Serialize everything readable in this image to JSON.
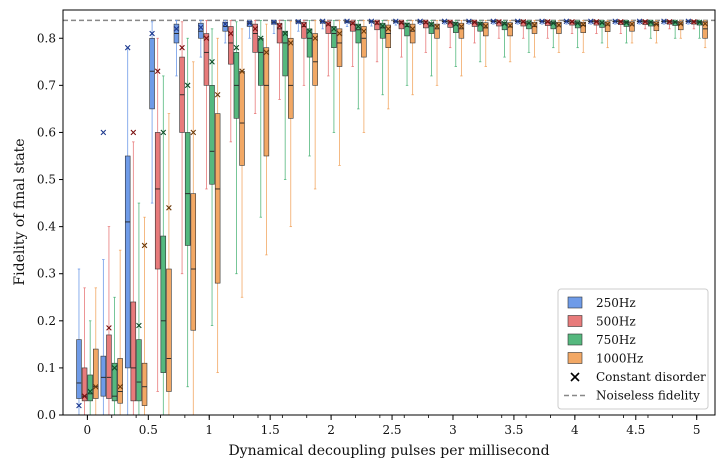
{
  "chart_data": {
    "type": "box",
    "title": "",
    "xlabel": "Dynamical decoupling pulses per millisecond",
    "ylabel": "Fidelity of final state",
    "xlim": [
      -0.2,
      5.15
    ],
    "ylim": [
      0.0,
      0.86
    ],
    "x_ticks": [
      "0",
      "0.5",
      "1",
      "1.5",
      "2",
      "2.5",
      "3",
      "3.5",
      "4",
      "4.5",
      "5"
    ],
    "y_ticks": [
      "0.0",
      "0.1",
      "0.2",
      "0.3",
      "0.4",
      "0.5",
      "0.6",
      "0.7",
      "0.8"
    ],
    "reference_line": {
      "name": "Noiseless fidelity",
      "y": 0.838
    },
    "legend": {
      "position": "bottom-right",
      "entries": [
        {
          "label": "250Hz",
          "kind": "box",
          "color": "#6f9be8"
        },
        {
          "label": "500Hz",
          "kind": "box",
          "color": "#e87b7b"
        },
        {
          "label": "750Hz",
          "kind": "box",
          "color": "#55b87e"
        },
        {
          "label": "1000Hz",
          "kind": "box",
          "color": "#f2a865"
        },
        {
          "label": "Constant disorder",
          "kind": "marker"
        },
        {
          "label": "Noiseless fidelity",
          "kind": "dashed"
        }
      ]
    },
    "series": [
      {
        "name": "250Hz",
        "color": "#6f9be8",
        "marker_color": "#1f3a8f",
        "x": [
          0,
          0.2,
          0.4,
          0.6,
          0.8,
          1,
          1.2,
          1.4,
          1.6,
          1.8,
          2,
          2.2,
          2.4,
          2.6,
          2.8,
          3,
          3.2,
          3.4,
          3.6,
          3.8,
          4,
          4.2,
          4.4,
          4.6,
          4.8,
          5
        ],
        "q1": [
          0.035,
          0.04,
          0.1,
          0.65,
          0.79,
          0.8,
          0.815,
          0.825,
          0.83,
          0.832,
          0.832,
          0.833,
          0.834,
          0.834,
          0.834,
          0.835,
          0.835,
          0.835,
          0.835,
          0.835,
          0.835,
          0.835,
          0.835,
          0.835,
          0.835,
          0.835
        ],
        "median": [
          0.068,
          0.08,
          0.41,
          0.73,
          0.81,
          0.815,
          0.825,
          0.832,
          0.834,
          0.835,
          0.836,
          0.836,
          0.836,
          0.836,
          0.836,
          0.836,
          0.836,
          0.836,
          0.836,
          0.836,
          0.836,
          0.836,
          0.836,
          0.836,
          0.836,
          0.836
        ],
        "q3": [
          0.16,
          0.125,
          0.55,
          0.8,
          0.83,
          0.832,
          0.834,
          0.836,
          0.837,
          0.837,
          0.837,
          0.837,
          0.837,
          0.837,
          0.837,
          0.837,
          0.837,
          0.837,
          0.837,
          0.837,
          0.837,
          0.837,
          0.837,
          0.837,
          0.837,
          0.837
        ],
        "whisker_low": [
          0.0,
          0.0,
          0.0,
          0.45,
          0.72,
          0.76,
          0.79,
          0.8,
          0.81,
          0.815,
          0.82,
          0.825,
          0.826,
          0.828,
          0.829,
          0.83,
          0.83,
          0.83,
          0.83,
          0.83,
          0.83,
          0.83,
          0.83,
          0.83,
          0.83,
          0.83
        ],
        "whisker_high": [
          0.31,
          0.33,
          0.78,
          0.835,
          0.838,
          0.838,
          0.838,
          0.838,
          0.838,
          0.838,
          0.838,
          0.838,
          0.838,
          0.838,
          0.838,
          0.838,
          0.838,
          0.838,
          0.838,
          0.838,
          0.838,
          0.838,
          0.838,
          0.838,
          0.838,
          0.838
        ],
        "constant_disorder": [
          0.02,
          0.6,
          0.78,
          0.81,
          0.82,
          0.823,
          0.83,
          0.832,
          0.834,
          0.835,
          0.836,
          0.836,
          0.836,
          0.836,
          0.836,
          0.836,
          0.836,
          0.836,
          0.836,
          0.836,
          0.836,
          0.836,
          0.836,
          0.836,
          0.836,
          0.836
        ]
      },
      {
        "name": "500Hz",
        "color": "#e87b7b",
        "marker_color": "#7a1010",
        "x": [
          0,
          0.2,
          0.4,
          0.6,
          0.8,
          1,
          1.2,
          1.4,
          1.6,
          1.8,
          2,
          2.2,
          2.4,
          2.6,
          2.8,
          3,
          3.2,
          3.4,
          3.6,
          3.8,
          4,
          4.2,
          4.4,
          4.6,
          4.8,
          5
        ],
        "q1": [
          0.03,
          0.035,
          0.03,
          0.31,
          0.6,
          0.7,
          0.745,
          0.77,
          0.79,
          0.8,
          0.81,
          0.815,
          0.818,
          0.82,
          0.822,
          0.823,
          0.825,
          0.826,
          0.826,
          0.827,
          0.828,
          0.828,
          0.829,
          0.829,
          0.83,
          0.83
        ],
        "median": [
          0.04,
          0.08,
          0.1,
          0.48,
          0.68,
          0.77,
          0.79,
          0.81,
          0.82,
          0.825,
          0.828,
          0.83,
          0.83,
          0.832,
          0.832,
          0.833,
          0.833,
          0.834,
          0.834,
          0.834,
          0.834,
          0.835,
          0.835,
          0.835,
          0.835,
          0.835
        ],
        "q3": [
          0.1,
          0.17,
          0.24,
          0.6,
          0.76,
          0.81,
          0.825,
          0.83,
          0.832,
          0.834,
          0.835,
          0.835,
          0.836,
          0.836,
          0.836,
          0.836,
          0.836,
          0.837,
          0.837,
          0.837,
          0.837,
          0.837,
          0.837,
          0.837,
          0.837,
          0.837
        ],
        "whisker_low": [
          0.0,
          0.0,
          0.0,
          0.05,
          0.3,
          0.48,
          0.58,
          0.64,
          0.67,
          0.7,
          0.72,
          0.74,
          0.75,
          0.76,
          0.77,
          0.78,
          0.79,
          0.8,
          0.8,
          0.8,
          0.81,
          0.81,
          0.81,
          0.82,
          0.82,
          0.82
        ],
        "whisker_high": [
          0.27,
          0.4,
          0.58,
          0.8,
          0.835,
          0.838,
          0.838,
          0.838,
          0.838,
          0.838,
          0.838,
          0.838,
          0.838,
          0.838,
          0.838,
          0.838,
          0.838,
          0.838,
          0.838,
          0.838,
          0.838,
          0.838,
          0.838,
          0.838,
          0.838,
          0.838
        ],
        "constant_disorder": [
          0.04,
          0.185,
          0.6,
          0.73,
          0.78,
          0.8,
          0.81,
          0.82,
          0.826,
          0.828,
          0.83,
          0.832,
          0.833,
          0.833,
          0.834,
          0.834,
          0.834,
          0.835,
          0.835,
          0.835,
          0.835,
          0.835,
          0.835,
          0.835,
          0.835,
          0.835
        ]
      },
      {
        "name": "750Hz",
        "color": "#55b87e",
        "marker_color": "#0f4d27",
        "x": [
          0,
          0.2,
          0.4,
          0.6,
          0.8,
          1,
          1.2,
          1.4,
          1.6,
          1.8,
          2,
          2.2,
          2.4,
          2.6,
          2.8,
          3,
          3.2,
          3.4,
          3.6,
          3.8,
          4,
          4.2,
          4.4,
          4.6,
          4.8,
          5
        ],
        "q1": [
          0.03,
          0.03,
          0.03,
          0.09,
          0.36,
          0.49,
          0.63,
          0.7,
          0.72,
          0.76,
          0.78,
          0.79,
          0.8,
          0.805,
          0.81,
          0.812,
          0.815,
          0.818,
          0.82,
          0.82,
          0.822,
          0.823,
          0.825,
          0.826,
          0.827,
          0.828
        ],
        "median": [
          0.045,
          0.04,
          0.07,
          0.2,
          0.47,
          0.56,
          0.7,
          0.77,
          0.79,
          0.8,
          0.81,
          0.818,
          0.822,
          0.825,
          0.826,
          0.828,
          0.83,
          0.83,
          0.831,
          0.832,
          0.832,
          0.832,
          0.833,
          0.833,
          0.834,
          0.834
        ],
        "q3": [
          0.085,
          0.11,
          0.16,
          0.38,
          0.6,
          0.7,
          0.77,
          0.8,
          0.815,
          0.82,
          0.825,
          0.83,
          0.832,
          0.832,
          0.833,
          0.834,
          0.834,
          0.834,
          0.835,
          0.835,
          0.835,
          0.835,
          0.836,
          0.836,
          0.836,
          0.836
        ],
        "whisker_low": [
          0.0,
          0.0,
          0.0,
          0.0,
          0.06,
          0.19,
          0.3,
          0.42,
          0.5,
          0.55,
          0.6,
          0.65,
          0.68,
          0.7,
          0.72,
          0.74,
          0.75,
          0.76,
          0.77,
          0.78,
          0.78,
          0.79,
          0.79,
          0.8,
          0.8,
          0.8
        ],
        "whisker_high": [
          0.2,
          0.25,
          0.45,
          0.72,
          0.8,
          0.82,
          0.835,
          0.838,
          0.838,
          0.838,
          0.838,
          0.838,
          0.838,
          0.838,
          0.838,
          0.838,
          0.838,
          0.838,
          0.838,
          0.838,
          0.838,
          0.838,
          0.838,
          0.838,
          0.838,
          0.838
        ],
        "constant_disorder": [
          0.05,
          0.1,
          0.19,
          0.6,
          0.7,
          0.75,
          0.78,
          0.8,
          0.81,
          0.815,
          0.82,
          0.825,
          0.826,
          0.828,
          0.83,
          0.83,
          0.83,
          0.831,
          0.832,
          0.832,
          0.832,
          0.833,
          0.833,
          0.834,
          0.834,
          0.834
        ]
      },
      {
        "name": "1000Hz",
        "color": "#f2a865",
        "marker_color": "#6b3a0a",
        "x": [
          0,
          0.2,
          0.4,
          0.6,
          0.8,
          1,
          1.2,
          1.4,
          1.6,
          1.8,
          2,
          2.2,
          2.4,
          2.6,
          2.8,
          3,
          3.2,
          3.4,
          3.6,
          3.8,
          4,
          4.2,
          4.4,
          4.6,
          4.8,
          5
        ],
        "q1": [
          0.035,
          0.025,
          0.02,
          0.05,
          0.18,
          0.28,
          0.53,
          0.55,
          0.63,
          0.7,
          0.74,
          0.76,
          0.78,
          0.79,
          0.8,
          0.8,
          0.805,
          0.805,
          0.81,
          0.81,
          0.812,
          0.814,
          0.815,
          0.816,
          0.818,
          0.8
        ],
        "median": [
          0.06,
          0.05,
          0.06,
          0.12,
          0.31,
          0.48,
          0.62,
          0.7,
          0.7,
          0.75,
          0.79,
          0.8,
          0.81,
          0.815,
          0.82,
          0.82,
          0.822,
          0.824,
          0.825,
          0.826,
          0.827,
          0.828,
          0.828,
          0.829,
          0.83,
          0.82
        ],
        "q3": [
          0.14,
          0.12,
          0.11,
          0.31,
          0.47,
          0.64,
          0.73,
          0.78,
          0.8,
          0.81,
          0.82,
          0.825,
          0.828,
          0.83,
          0.83,
          0.832,
          0.833,
          0.833,
          0.834,
          0.834,
          0.834,
          0.835,
          0.835,
          0.835,
          0.835,
          0.835
        ],
        "whisker_low": [
          0.0,
          0.0,
          0.0,
          0.0,
          0.0,
          0.09,
          0.25,
          0.34,
          0.4,
          0.48,
          0.53,
          0.6,
          0.65,
          0.68,
          0.7,
          0.72,
          0.74,
          0.75,
          0.76,
          0.77,
          0.77,
          0.78,
          0.79,
          0.79,
          0.8,
          0.78
        ],
        "whisker_high": [
          0.27,
          0.35,
          0.42,
          0.64,
          0.75,
          0.8,
          0.82,
          0.83,
          0.836,
          0.838,
          0.838,
          0.838,
          0.838,
          0.838,
          0.838,
          0.838,
          0.838,
          0.838,
          0.838,
          0.838,
          0.838,
          0.838,
          0.838,
          0.838,
          0.838,
          0.838
        ],
        "constant_disorder": [
          0.06,
          0.06,
          0.36,
          0.44,
          0.6,
          0.68,
          0.73,
          0.77,
          0.79,
          0.8,
          0.81,
          0.815,
          0.82,
          0.82,
          0.825,
          0.825,
          0.826,
          0.827,
          0.828,
          0.828,
          0.829,
          0.83,
          0.83,
          0.83,
          0.831,
          0.831
        ]
      }
    ]
  }
}
